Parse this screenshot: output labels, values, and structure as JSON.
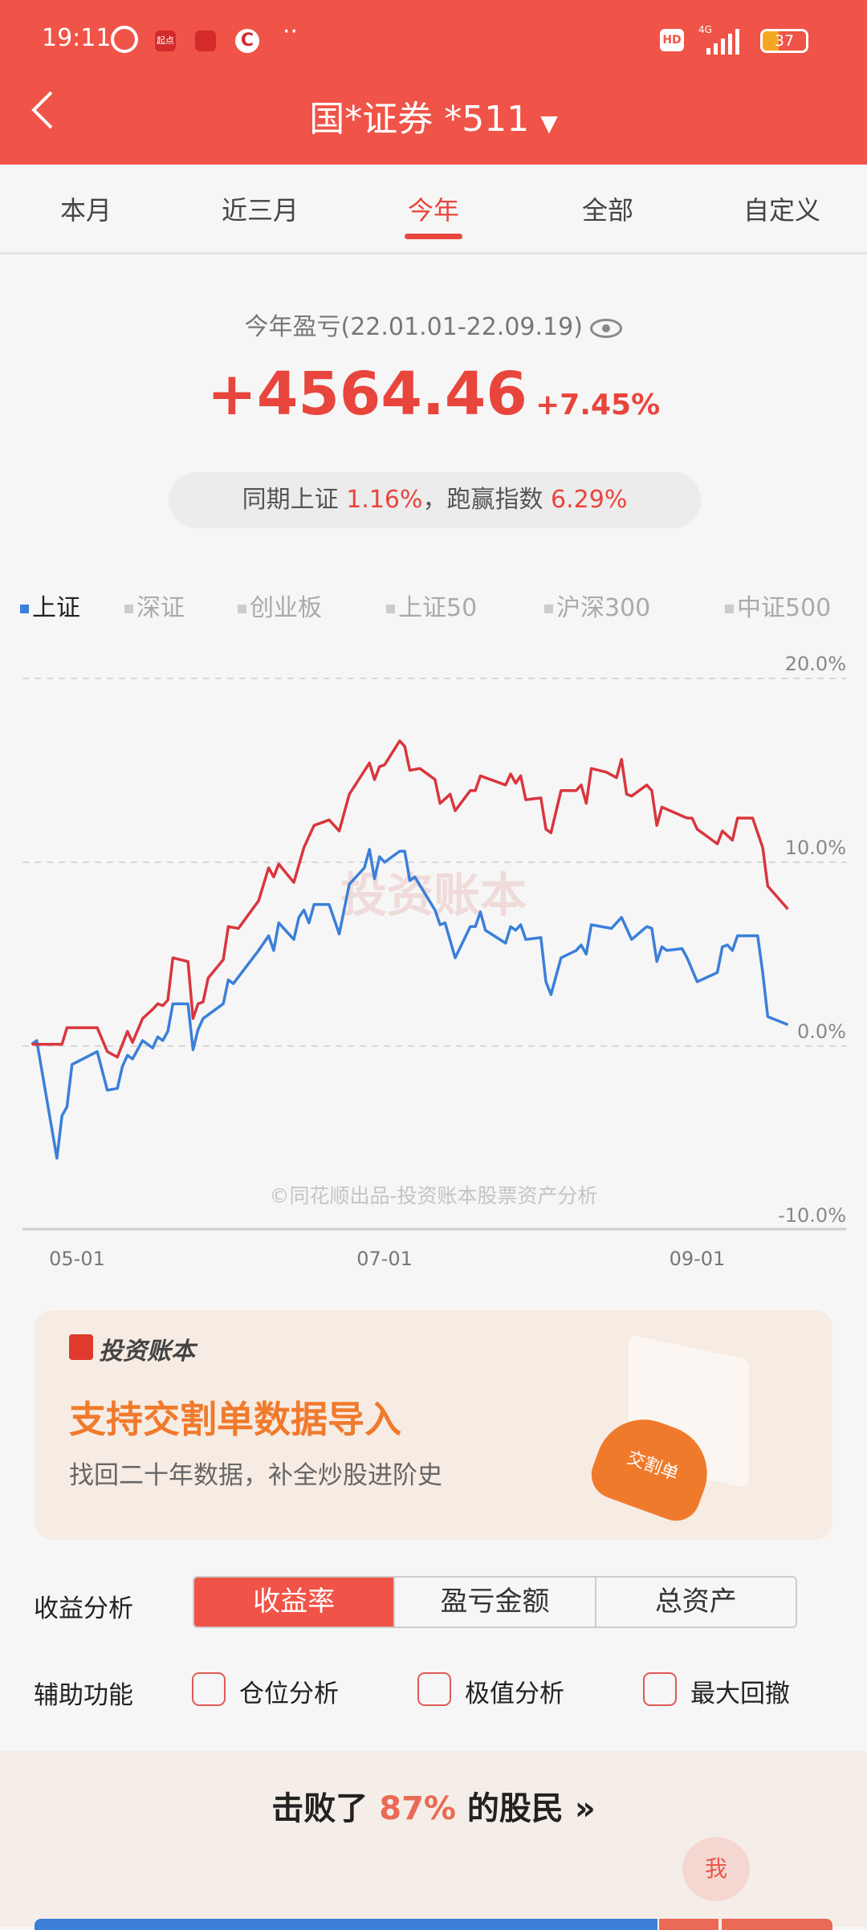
{
  "status": {
    "time": "19:11",
    "app_badges": [
      "起点",
      "",
      "C"
    ],
    "network": "4G",
    "hd": "HD",
    "battery": "37"
  },
  "header": {
    "title": "国*证券 *511"
  },
  "tabs": [
    {
      "label": "本月"
    },
    {
      "label": "近三月"
    },
    {
      "label": "今年",
      "active": true
    },
    {
      "label": "全部"
    },
    {
      "label": "自定义"
    }
  ],
  "summary": {
    "title": "今年盈亏(22.01.01-22.09.19)",
    "amount": "+4564.46",
    "percent": "+7.45%",
    "compare_prefix": "同期上证",
    "index_return": "1.16%",
    "beat_label": "，跑赢指数",
    "beat_value": "6.29%"
  },
  "legend": [
    {
      "label": "上证",
      "active": true
    },
    {
      "label": "深证"
    },
    {
      "label": "创业板"
    },
    {
      "label": "上证50"
    },
    {
      "label": "沪深300"
    },
    {
      "label": "中证500"
    }
  ],
  "chart_data": {
    "type": "line",
    "ylim": [
      -10,
      20
    ],
    "yticks": [
      "20.0%",
      "10.0%",
      "0.0%",
      "-10.0%"
    ],
    "xticks": [
      "05-01",
      "07-01",
      "09-01"
    ],
    "grid": true,
    "watermark": "投资账本",
    "credit": "©同花顺出品-投资账本股票资产分析",
    "colors": {
      "account": "#d9363e",
      "index": "#3b7fd9"
    },
    "series": [
      {
        "key": "account",
        "points": [
          [
            "04-22",
            0.1
          ],
          [
            "04-28",
            0.1
          ],
          [
            "04-29",
            1.0
          ],
          [
            "05-05",
            1.0
          ],
          [
            "05-07",
            -0.3
          ],
          [
            "05-09",
            -0.6
          ],
          [
            "05-11",
            0.8
          ],
          [
            "05-12",
            0.2
          ],
          [
            "05-14",
            1.5
          ],
          [
            "05-16",
            2.0
          ],
          [
            "05-17",
            2.3
          ],
          [
            "05-18",
            2.2
          ],
          [
            "05-19",
            2.5
          ],
          [
            "05-20",
            4.8
          ],
          [
            "05-23",
            4.6
          ],
          [
            "05-24",
            1.5
          ],
          [
            "05-25",
            2.3
          ],
          [
            "05-26",
            2.4
          ],
          [
            "05-27",
            3.7
          ],
          [
            "05-30",
            4.7
          ],
          [
            "05-31",
            6.5
          ],
          [
            "06-02",
            6.4
          ],
          [
            "06-06",
            7.9
          ],
          [
            "06-08",
            9.7
          ],
          [
            "06-09",
            9.2
          ],
          [
            "06-10",
            9.9
          ],
          [
            "06-13",
            8.9
          ],
          [
            "06-15",
            10.8
          ],
          [
            "06-17",
            12.0
          ],
          [
            "06-20",
            12.3
          ],
          [
            "06-22",
            11.7
          ],
          [
            "06-24",
            13.7
          ],
          [
            "06-28",
            15.4
          ],
          [
            "06-29",
            14.5
          ],
          [
            "06-30",
            15.2
          ],
          [
            "07-01",
            15.3
          ],
          [
            "07-04",
            16.6
          ],
          [
            "07-05",
            16.3
          ],
          [
            "07-06",
            15.0
          ],
          [
            "07-08",
            15.1
          ],
          [
            "07-11",
            14.5
          ],
          [
            "07-12",
            13.2
          ],
          [
            "07-14",
            13.7
          ],
          [
            "07-15",
            12.8
          ],
          [
            "07-18",
            13.9
          ],
          [
            "07-19",
            13.9
          ],
          [
            "07-20",
            14.7
          ],
          [
            "07-25",
            14.2
          ],
          [
            "07-26",
            14.8
          ],
          [
            "07-27",
            14.3
          ],
          [
            "07-28",
            14.7
          ],
          [
            "07-29",
            13.4
          ],
          [
            "08-01",
            13.5
          ],
          [
            "08-02",
            11.8
          ],
          [
            "08-03",
            11.6
          ],
          [
            "08-05",
            13.9
          ],
          [
            "08-08",
            13.9
          ],
          [
            "08-09",
            14.2
          ],
          [
            "08-10",
            13.2
          ],
          [
            "08-11",
            15.1
          ],
          [
            "08-14",
            14.9
          ],
          [
            "08-16",
            14.6
          ],
          [
            "08-17",
            15.6
          ],
          [
            "08-18",
            13.7
          ],
          [
            "08-19",
            13.6
          ],
          [
            "08-22",
            14.2
          ],
          [
            "08-23",
            13.9
          ],
          [
            "08-24",
            12.0
          ],
          [
            "08-25",
            13.0
          ],
          [
            "08-30",
            12.4
          ],
          [
            "08-31",
            12.4
          ],
          [
            "09-01",
            11.8
          ],
          [
            "09-05",
            11.0
          ],
          [
            "09-06",
            11.7
          ],
          [
            "09-08",
            11.2
          ],
          [
            "09-09",
            12.4
          ],
          [
            "09-12",
            12.4
          ],
          [
            "09-14",
            10.8
          ],
          [
            "09-15",
            8.7
          ],
          [
            "09-19",
            7.45
          ]
        ]
      },
      {
        "key": "index",
        "points": [
          [
            "04-22",
            0.1
          ],
          [
            "04-23",
            0.3
          ],
          [
            "04-27",
            -6.1
          ],
          [
            "04-28",
            -3.8
          ],
          [
            "04-29",
            -3.3
          ],
          [
            "04-30",
            -1.0
          ],
          [
            "05-05",
            -0.3
          ],
          [
            "05-07",
            -2.4
          ],
          [
            "05-09",
            -2.3
          ],
          [
            "05-10",
            -1.1
          ],
          [
            "05-11",
            -0.5
          ],
          [
            "05-12",
            -0.7
          ],
          [
            "05-14",
            0.3
          ],
          [
            "05-16",
            -0.1
          ],
          [
            "05-17",
            0.5
          ],
          [
            "05-18",
            0.3
          ],
          [
            "05-19",
            0.8
          ],
          [
            "05-20",
            2.3
          ],
          [
            "05-23",
            2.3
          ],
          [
            "05-24",
            -0.2
          ],
          [
            "05-25",
            0.9
          ],
          [
            "05-26",
            1.5
          ],
          [
            "05-30",
            2.3
          ],
          [
            "05-31",
            3.6
          ],
          [
            "06-01",
            3.4
          ],
          [
            "06-06",
            5.2
          ],
          [
            "06-08",
            6.0
          ],
          [
            "06-09",
            5.2
          ],
          [
            "06-10",
            6.7
          ],
          [
            "06-13",
            5.8
          ],
          [
            "06-14",
            7.0
          ],
          [
            "06-15",
            7.4
          ],
          [
            "06-16",
            6.7
          ],
          [
            "06-17",
            7.7
          ],
          [
            "06-20",
            7.7
          ],
          [
            "06-22",
            6.1
          ],
          [
            "06-24",
            8.8
          ],
          [
            "06-27",
            9.7
          ],
          [
            "06-28",
            10.7
          ],
          [
            "06-29",
            9.1
          ],
          [
            "06-30",
            10.3
          ],
          [
            "07-01",
            10.0
          ],
          [
            "07-04",
            10.6
          ],
          [
            "07-05",
            10.6
          ],
          [
            "07-06",
            9.0
          ],
          [
            "07-07",
            9.2
          ],
          [
            "07-11",
            7.4
          ],
          [
            "07-12",
            6.6
          ],
          [
            "07-13",
            6.7
          ],
          [
            "07-15",
            4.8
          ],
          [
            "07-18",
            6.5
          ],
          [
            "07-19",
            6.5
          ],
          [
            "07-20",
            7.3
          ],
          [
            "07-21",
            6.3
          ],
          [
            "07-25",
            5.6
          ],
          [
            "07-26",
            6.5
          ],
          [
            "07-27",
            6.3
          ],
          [
            "07-28",
            6.6
          ],
          [
            "07-29",
            5.8
          ],
          [
            "08-01",
            5.9
          ],
          [
            "08-02",
            3.5
          ],
          [
            "08-03",
            2.8
          ],
          [
            "08-05",
            4.8
          ],
          [
            "08-08",
            5.2
          ],
          [
            "08-09",
            5.5
          ],
          [
            "08-10",
            5.0
          ],
          [
            "08-11",
            6.6
          ],
          [
            "08-15",
            6.4
          ],
          [
            "08-17",
            7.0
          ],
          [
            "08-19",
            5.8
          ],
          [
            "08-22",
            6.5
          ],
          [
            "08-23",
            6.4
          ],
          [
            "08-24",
            4.6
          ],
          [
            "08-25",
            5.4
          ],
          [
            "08-26",
            5.2
          ],
          [
            "08-29",
            5.3
          ],
          [
            "08-30",
            4.8
          ],
          [
            "09-01",
            3.5
          ],
          [
            "09-05",
            4.0
          ],
          [
            "09-06",
            5.4
          ],
          [
            "09-07",
            5.5
          ],
          [
            "09-08",
            5.2
          ],
          [
            "09-09",
            6.0
          ],
          [
            "09-13",
            6.0
          ],
          [
            "09-14",
            4.0
          ],
          [
            "09-15",
            1.6
          ],
          [
            "09-19",
            1.16
          ]
        ]
      }
    ]
  },
  "banner": {
    "brand": "投资账本",
    "headline": "支持交割单数据导入",
    "subline": "找回二十年数据，补全炒股进阶史",
    "cloud_label": "交割单"
  },
  "analysis": {
    "label": "收益分析",
    "options": [
      {
        "label": "收益率",
        "active": true
      },
      {
        "label": "盈亏金额"
      },
      {
        "label": "总资产"
      }
    ]
  },
  "aux": {
    "label": "辅助功能",
    "options": [
      {
        "label": "仓位分析",
        "checked": false
      },
      {
        "label": "极值分析",
        "checked": false
      },
      {
        "label": "最大回撤",
        "checked": false
      }
    ]
  },
  "rank": {
    "prefix": "击败了",
    "percent": "87%",
    "suffix": "的股民",
    "me": "我",
    "beat_fraction": 0.87
  }
}
